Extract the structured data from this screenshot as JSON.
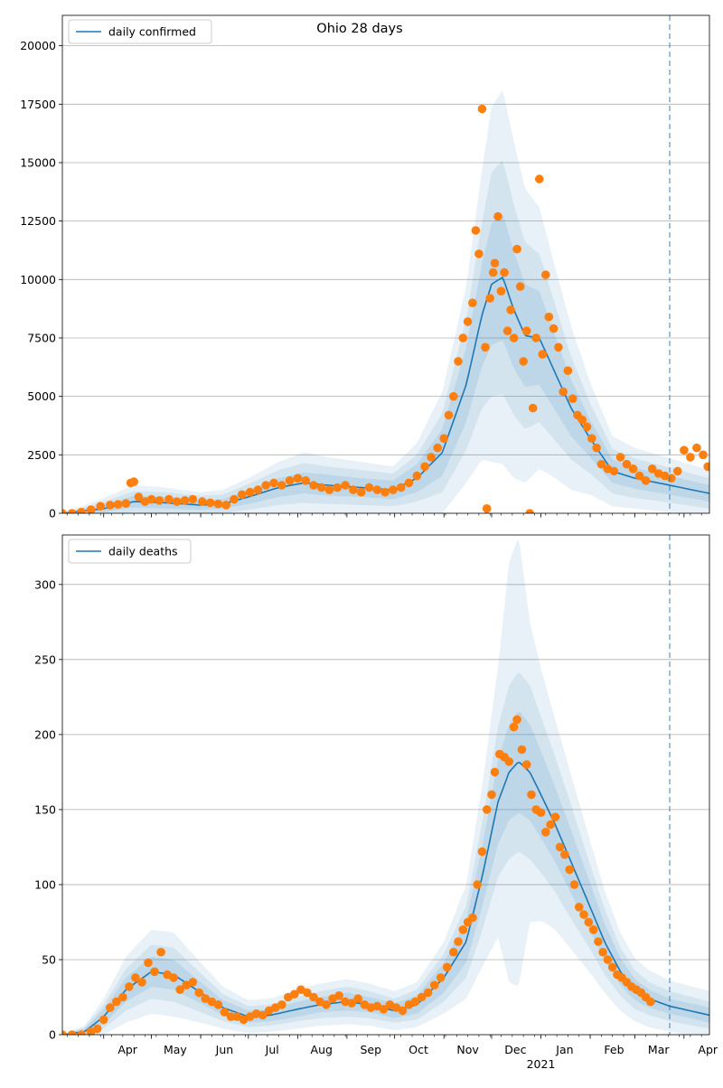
{
  "title": "Ohio 28 days",
  "colors": {
    "line": "#1f77b4",
    "points": "#ff7f0e",
    "band": "#1f77b4",
    "grid": "#b0b0b0",
    "vline": "#1f77b4"
  },
  "x_month_labels": [
    "Apr",
    "May",
    "Jun",
    "Jul",
    "Aug",
    "Sep",
    "Oct",
    "Nov",
    "Dec",
    "Jan",
    "Feb",
    "Mar",
    "Apr"
  ],
  "x_year_label": "2021",
  "chart_data": [
    {
      "type": "line",
      "title": "Ohio 28 days",
      "legend": "daily confirmed",
      "legend_position": "top-left",
      "grid": "horizontal",
      "x_range": [
        "2020-03-06",
        "2021-04-17"
      ],
      "vline_date": "2021-03-23",
      "ylim": [
        0,
        21300
      ],
      "yticks": [
        0,
        2500,
        5000,
        7500,
        10000,
        12500,
        15000,
        17500,
        20000
      ],
      "ytick_labels": [
        "0",
        "2500",
        "5000",
        "7500",
        "10000",
        "12500",
        "15000",
        "17500",
        "20000"
      ],
      "model": {
        "dates": [
          "2020-03-06",
          "2020-04-01",
          "2020-04-20",
          "2020-05-10",
          "2020-06-01",
          "2020-06-15",
          "2020-07-01",
          "2020-07-20",
          "2020-08-05",
          "2020-08-20",
          "2020-09-10",
          "2020-09-30",
          "2020-10-15",
          "2020-10-31",
          "2020-11-15",
          "2020-11-25",
          "2020-12-01",
          "2020-12-08",
          "2020-12-15",
          "2020-12-22",
          "2020-12-31",
          "2021-01-10",
          "2021-01-20",
          "2021-02-01",
          "2021-02-15",
          "2021-03-01",
          "2021-03-23",
          "2021-04-17"
        ],
        "values": [
          0,
          200,
          500,
          450,
          350,
          400,
          700,
          1100,
          1300,
          1200,
          1100,
          1000,
          1500,
          2600,
          5500,
          8500,
          9800,
          10100,
          8700,
          7600,
          7500,
          6000,
          4500,
          3200,
          1800,
          1500,
          1200,
          850
        ],
        "band50": [
          0,
          150,
          250,
          250,
          200,
          200,
          300,
          400,
          450,
          450,
          400,
          400,
          600,
          1000,
          1600,
          2200,
          2600,
          2700,
          2500,
          2200,
          2000,
          1600,
          1200,
          800,
          500,
          450,
          400,
          350
        ],
        "band80": [
          0,
          300,
          450,
          450,
          400,
          400,
          550,
          750,
          850,
          800,
          750,
          700,
          1000,
          1700,
          2800,
          4000,
          4800,
          5000,
          4500,
          4000,
          3600,
          2900,
          2200,
          1500,
          950,
          850,
          750,
          650
        ],
        "band95": [
          0,
          450,
          700,
          650,
          550,
          600,
          800,
          1100,
          1300,
          1200,
          1100,
          1000,
          1500,
          2600,
          4200,
          6200,
          7600,
          8000,
          7200,
          6300,
          5600,
          4500,
          3500,
          2400,
          1500,
          1300,
          1150,
          1000
        ]
      },
      "observed": {
        "dates": [
          "2020-03-06",
          "2020-03-12",
          "2020-03-18",
          "2020-03-24",
          "2020-03-30",
          "2020-04-05",
          "2020-04-10",
          "2020-04-15",
          "2020-04-18",
          "2020-04-20",
          "2020-04-23",
          "2020-04-27",
          "2020-05-01",
          "2020-05-06",
          "2020-05-12",
          "2020-05-17",
          "2020-05-22",
          "2020-05-27",
          "2020-06-02",
          "2020-06-07",
          "2020-06-12",
          "2020-06-17",
          "2020-06-22",
          "2020-06-27",
          "2020-07-02",
          "2020-07-07",
          "2020-07-12",
          "2020-07-17",
          "2020-07-22",
          "2020-07-27",
          "2020-08-01",
          "2020-08-06",
          "2020-08-11",
          "2020-08-16",
          "2020-08-21",
          "2020-08-26",
          "2020-08-31",
          "2020-09-05",
          "2020-09-10",
          "2020-09-15",
          "2020-09-20",
          "2020-09-25",
          "2020-09-30",
          "2020-10-05",
          "2020-10-10",
          "2020-10-15",
          "2020-10-20",
          "2020-10-24",
          "2020-10-28",
          "2020-11-01",
          "2020-11-04",
          "2020-11-07",
          "2020-11-10",
          "2020-11-13",
          "2020-11-16",
          "2020-11-19",
          "2020-11-21",
          "2020-11-23",
          "2020-11-25",
          "2020-11-27",
          "2020-11-28",
          "2020-11-30",
          "2020-12-02",
          "2020-12-03",
          "2020-12-05",
          "2020-12-07",
          "2020-12-09",
          "2020-12-11",
          "2020-12-13",
          "2020-12-15",
          "2020-12-17",
          "2020-12-19",
          "2020-12-21",
          "2020-12-23",
          "2020-12-25",
          "2020-12-27",
          "2020-12-29",
          "2020-12-31",
          "2021-01-02",
          "2021-01-04",
          "2021-01-06",
          "2021-01-09",
          "2021-01-12",
          "2021-01-15",
          "2021-01-18",
          "2021-01-21",
          "2021-01-24",
          "2021-01-27",
          "2021-01-30",
          "2021-02-02",
          "2021-02-05",
          "2021-02-08",
          "2021-02-12",
          "2021-02-16",
          "2021-02-20",
          "2021-02-24",
          "2021-02-28",
          "2021-03-04",
          "2021-03-08",
          "2021-03-12",
          "2021-03-16",
          "2021-03-20",
          "2021-03-24",
          "2021-03-28",
          "2021-04-01",
          "2021-04-05",
          "2021-04-09",
          "2021-04-13",
          "2021-04-16"
        ],
        "values": [
          0,
          0,
          50,
          150,
          300,
          350,
          380,
          420,
          1300,
          1350,
          700,
          500,
          600,
          550,
          600,
          500,
          550,
          600,
          500,
          450,
          400,
          350,
          600,
          800,
          900,
          1000,
          1200,
          1300,
          1200,
          1400,
          1500,
          1400,
          1200,
          1100,
          1000,
          1100,
          1200,
          1000,
          900,
          1100,
          1000,
          900,
          1000,
          1100,
          1300,
          1600,
          2000,
          2400,
          2800,
          3200,
          4200,
          5000,
          6500,
          7500,
          8200,
          9000,
          12100,
          11100,
          17300,
          7100,
          200,
          9200,
          10300,
          10700,
          12700,
          9500,
          10300,
          7800,
          8700,
          7500,
          11300,
          9700,
          6500,
          7800,
          0,
          4500,
          7500,
          14300,
          6800,
          10200,
          8400,
          7900,
          7100,
          5200,
          6100,
          4900,
          4200,
          4000,
          3700,
          3200,
          2800,
          2100,
          1900,
          1800,
          2400,
          2100,
          1900,
          1600,
          1400,
          1900,
          1700,
          1600,
          1500,
          1800,
          2700,
          2400,
          2800,
          2500,
          2000
        ]
      }
    },
    {
      "type": "line",
      "legend": "daily deaths",
      "legend_position": "top-left",
      "grid": "horizontal",
      "x_range": [
        "2020-03-06",
        "2021-04-17"
      ],
      "vline_date": "2021-03-23",
      "ylim": [
        0,
        333
      ],
      "yticks": [
        0,
        50,
        100,
        150,
        200,
        250,
        300
      ],
      "ytick_labels": [
        "0",
        "50",
        "100",
        "150",
        "200",
        "250",
        "300"
      ],
      "model": {
        "dates": [
          "2020-03-06",
          "2020-03-20",
          "2020-04-01",
          "2020-04-15",
          "2020-05-01",
          "2020-05-15",
          "2020-06-01",
          "2020-06-15",
          "2020-07-01",
          "2020-07-15",
          "2020-08-01",
          "2020-08-15",
          "2020-09-01",
          "2020-09-15",
          "2020-10-01",
          "2020-10-15",
          "2020-11-01",
          "2020-11-15",
          "2020-11-25",
          "2020-12-05",
          "2020-12-12",
          "2020-12-18",
          "2020-12-25",
          "2021-01-01",
          "2021-01-10",
          "2021-01-20",
          "2021-02-01",
          "2021-02-10",
          "2021-02-20",
          "2021-03-01",
          "2021-03-10",
          "2021-03-23",
          "2021-04-17"
        ],
        "values": [
          0,
          2,
          12,
          30,
          42,
          40,
          28,
          18,
          12,
          13,
          17,
          20,
          22,
          20,
          16,
          20,
          38,
          62,
          105,
          155,
          175,
          182,
          175,
          160,
          140,
          115,
          85,
          62,
          42,
          30,
          24,
          19,
          13
        ],
        "band50": [
          0,
          2,
          5,
          8,
          10,
          10,
          7,
          5,
          4,
          4,
          5,
          5,
          6,
          5,
          5,
          6,
          10,
          14,
          20,
          28,
          32,
          34,
          32,
          29,
          25,
          21,
          16,
          12,
          9,
          7,
          6,
          5,
          5
        ],
        "band80": [
          0,
          3,
          8,
          14,
          18,
          18,
          13,
          9,
          7,
          7,
          8,
          9,
          10,
          9,
          8,
          10,
          16,
          24,
          36,
          50,
          58,
          60,
          58,
          52,
          45,
          38,
          28,
          22,
          16,
          13,
          11,
          10,
          9
        ],
        "band95": [
          0,
          4,
          12,
          22,
          28,
          28,
          20,
          14,
          11,
          11,
          13,
          14,
          15,
          14,
          13,
          15,
          24,
          38,
          60,
          90,
          140,
          150,
          100,
          84,
          70,
          58,
          44,
          34,
          26,
          21,
          19,
          17,
          16
        ]
      },
      "observed": {
        "dates": [
          "2020-03-06",
          "2020-03-12",
          "2020-03-18",
          "2020-03-24",
          "2020-03-28",
          "2020-04-01",
          "2020-04-05",
          "2020-04-09",
          "2020-04-13",
          "2020-04-17",
          "2020-04-21",
          "2020-04-25",
          "2020-04-29",
          "2020-05-03",
          "2020-05-07",
          "2020-05-11",
          "2020-05-15",
          "2020-05-19",
          "2020-05-23",
          "2020-05-27",
          "2020-05-31",
          "2020-06-04",
          "2020-06-08",
          "2020-06-12",
          "2020-06-16",
          "2020-06-20",
          "2020-06-24",
          "2020-06-28",
          "2020-07-02",
          "2020-07-06",
          "2020-07-10",
          "2020-07-14",
          "2020-07-18",
          "2020-07-22",
          "2020-07-26",
          "2020-07-30",
          "2020-08-03",
          "2020-08-07",
          "2020-08-11",
          "2020-08-15",
          "2020-08-19",
          "2020-08-23",
          "2020-08-27",
          "2020-08-31",
          "2020-09-04",
          "2020-09-08",
          "2020-09-12",
          "2020-09-16",
          "2020-09-20",
          "2020-09-24",
          "2020-09-28",
          "2020-10-02",
          "2020-10-06",
          "2020-10-10",
          "2020-10-14",
          "2020-10-18",
          "2020-10-22",
          "2020-10-26",
          "2020-10-30",
          "2020-11-03",
          "2020-11-07",
          "2020-11-10",
          "2020-11-13",
          "2020-11-16",
          "2020-11-19",
          "2020-11-22",
          "2020-11-25",
          "2020-11-28",
          "2020-12-01",
          "2020-12-03",
          "2020-12-06",
          "2020-12-09",
          "2020-12-12",
          "2020-12-15",
          "2020-12-17",
          "2020-12-20",
          "2020-12-23",
          "2020-12-26",
          "2020-12-29",
          "2021-01-01",
          "2021-01-04",
          "2021-01-07",
          "2021-01-10",
          "2021-01-13",
          "2021-01-16",
          "2021-01-19",
          "2021-01-22",
          "2021-01-25",
          "2021-01-28",
          "2021-01-31",
          "2021-02-03",
          "2021-02-06",
          "2021-02-09",
          "2021-02-12",
          "2021-02-15",
          "2021-02-18",
          "2021-02-21",
          "2021-02-24",
          "2021-02-27",
          "2021-03-02",
          "2021-03-05",
          "2021-03-08",
          "2021-03-11"
        ],
        "values": [
          0,
          0,
          0,
          2,
          4,
          10,
          18,
          22,
          25,
          32,
          38,
          35,
          48,
          42,
          55,
          40,
          38,
          30,
          33,
          35,
          28,
          24,
          22,
          20,
          15,
          12,
          12,
          10,
          12,
          14,
          13,
          16,
          18,
          20,
          25,
          27,
          30,
          28,
          25,
          22,
          20,
          24,
          26,
          22,
          21,
          24,
          20,
          18,
          19,
          17,
          20,
          18,
          16,
          20,
          22,
          25,
          28,
          33,
          38,
          45,
          55,
          62,
          70,
          75,
          78,
          100,
          122,
          150,
          160,
          175,
          187,
          185,
          182,
          205,
          210,
          190,
          180,
          160,
          150,
          148,
          135,
          140,
          145,
          125,
          120,
          110,
          100,
          85,
          80,
          75,
          70,
          62,
          55,
          50,
          45,
          40,
          38,
          35,
          32,
          30,
          28,
          25,
          22
        ]
      }
    }
  ]
}
